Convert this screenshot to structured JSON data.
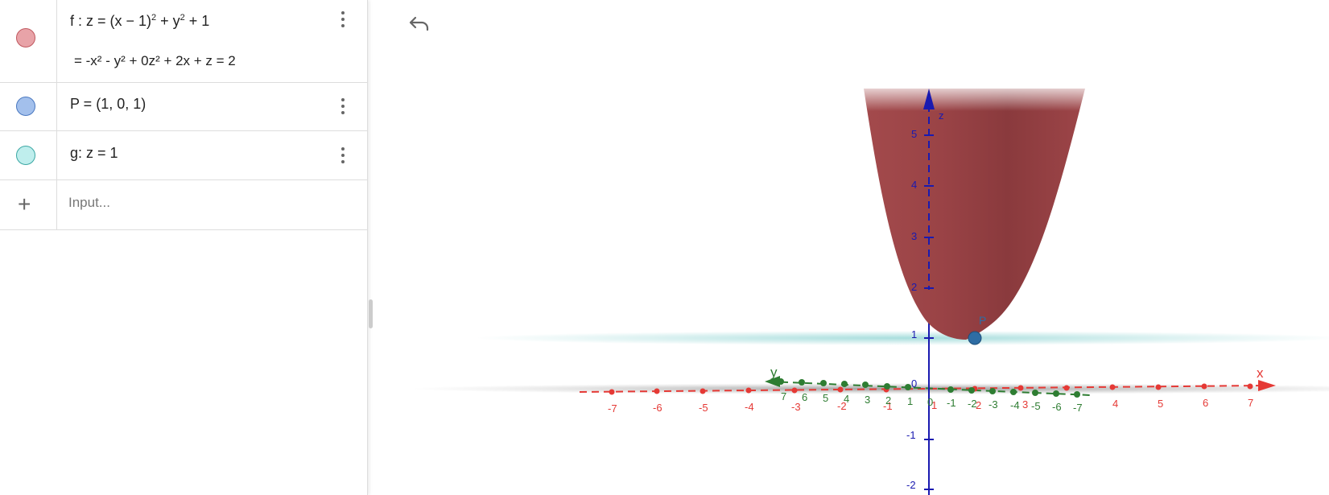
{
  "algebra": {
    "f": {
      "line1": "f : z = (x − 1)",
      "sq1": "2",
      "plus_y": " + y",
      "sq2": "2",
      "plus1": " + 1",
      "line2": "=  -x² - y² + 0z² + 2x + z = 2",
      "color": "#e8a3a8"
    },
    "P": {
      "label": "P = (1, 0, 1)",
      "color": "#a3c0ec"
    },
    "g": {
      "label": "g: z = 1",
      "color": "#bfeeed"
    },
    "input": {
      "placeholder": "Input..."
    }
  },
  "graphics": {
    "z_axis_label": "z",
    "x_axis_label": "x",
    "y_axis_label": "y",
    "point_label": "P",
    "origin_label": "0",
    "z_ticks": [
      "5",
      "4",
      "3",
      "2",
      "1",
      "-1",
      "-2"
    ],
    "x_ticks": [
      "-7",
      "-6",
      "-5",
      "-4",
      "-3",
      "-2",
      "-1",
      "1",
      "2",
      "3",
      "4",
      "5",
      "6",
      "7"
    ],
    "y_ticks": [
      "7",
      "6",
      "5",
      "4",
      "3",
      "2",
      "1",
      "0",
      "-1",
      "-2",
      "-3",
      "-4",
      "-5",
      "-6",
      "-7"
    ],
    "colors": {
      "surface": "#9a4447",
      "plane": "#a8dedd",
      "x_axis": "#e53935",
      "y_axis": "#2e7d32",
      "z_axis": "#1a1ab0",
      "point": "#2e6da4"
    }
  }
}
